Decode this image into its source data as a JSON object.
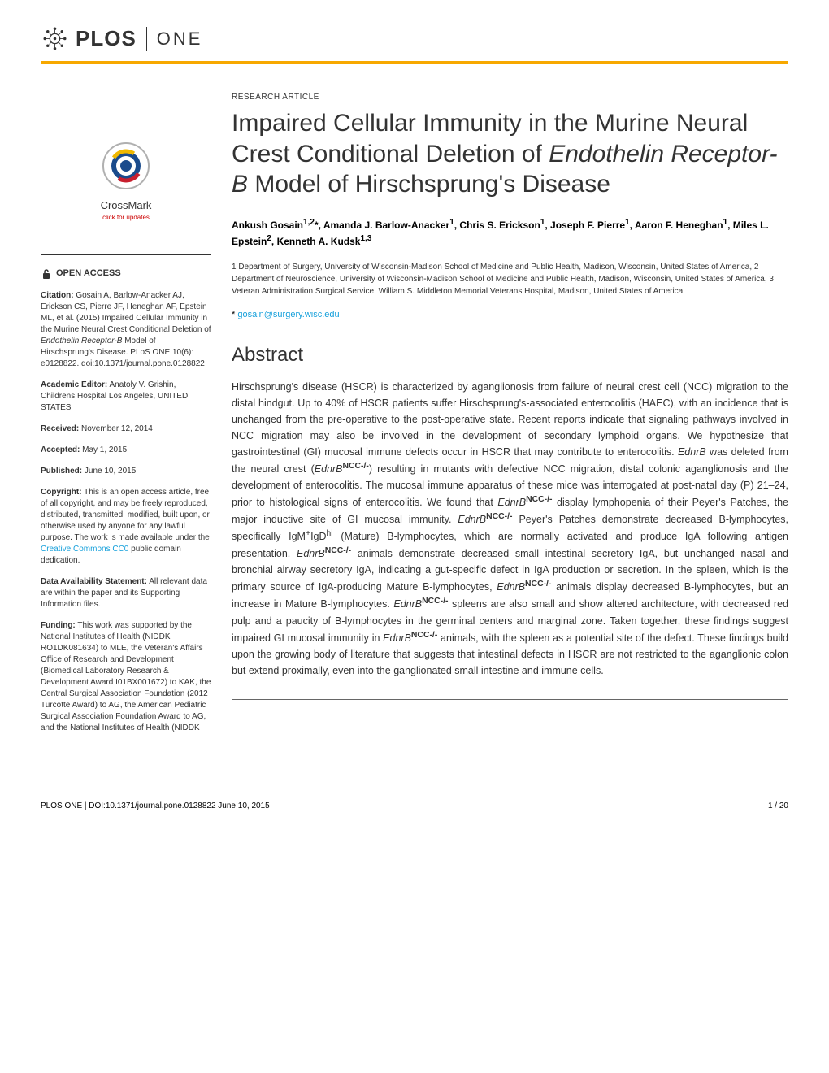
{
  "journal": {
    "logo_plos": "PLOS",
    "logo_one": "ONE"
  },
  "crossmark": {
    "label": "CrossMark",
    "sub": "click for updates"
  },
  "sidebar": {
    "open_access": "OPEN ACCESS",
    "citation_label": "Citation:",
    "citation": " Gosain A, Barlow-Anacker AJ, Erickson CS, Pierre JF, Heneghan AF, Epstein ML, et al. (2015) Impaired Cellular Immunity in the Murine Neural Crest Conditional Deletion of ",
    "citation_italic": "Endothelin Receptor-B",
    "citation_end": " Model of Hirschsprung's Disease. PLoS ONE 10(6): e0128822. doi:10.1371/journal.pone.0128822",
    "editor_label": "Academic Editor:",
    "editor": " Anatoly V. Grishin, Childrens Hospital Los Angeles, UNITED STATES",
    "received_label": "Received:",
    "received": " November 12, 2014",
    "accepted_label": "Accepted:",
    "accepted": " May 1, 2015",
    "published_label": "Published:",
    "published": " June 10, 2015",
    "copyright_label": "Copyright:",
    "copyright": " This is an open access article, free of all copyright, and may be freely reproduced, distributed, transmitted, modified, built upon, or otherwise used by anyone for any lawful purpose. The work is made available under the ",
    "copyright_link": "Creative Commons CC0",
    "copyright_end": " public domain dedication.",
    "data_label": "Data Availability Statement:",
    "data": " All relevant data are within the paper and its Supporting Information files.",
    "funding_label": "Funding:",
    "funding": " This work was supported by the National Institutes of Health (NIDDK RO1DK081634) to MLE, the Veteran's Affairs Office of Research and Development (Biomedical Laboratory Research & Development Award I01BX001672) to KAK, the Central Surgical Association Foundation (2012 Turcotte Award) to AG, the American Pediatric Surgical Association Foundation Award to AG, and the National Institutes of Health (NIDDK"
  },
  "article": {
    "type": "RESEARCH ARTICLE",
    "title_1": "Impaired Cellular Immunity in the Murine Neural Crest Conditional Deletion of ",
    "title_italic": "Endothelin Receptor-B",
    "title_2": " Model of Hirschsprung's Disease",
    "authors_html": "Ankush Gosain<sup>1,2</sup>*, Amanda J. Barlow-Anacker<sup>1</sup>, Chris S. Erickson<sup>1</sup>, Joseph F. Pierre<sup>1</sup>, Aaron F. Heneghan<sup>1</sup>, Miles L. Epstein<sup>2</sup>, Kenneth A. Kudsk<sup>1,3</sup>",
    "affiliations": "1 Department of Surgery, University of Wisconsin-Madison School of Medicine and Public Health, Madison, Wisconsin, United States of America, 2 Department of Neuroscience, University of Wisconsin-Madison School of Medicine and Public Health, Madison, Wisconsin, United States of America, 3 Veteran Administration Surgical Service, William S. Middleton Memorial Veterans Hospital, Madison, United States of America",
    "correspondence_symbol": "* ",
    "correspondence_email": "gosain@surgery.wisc.edu",
    "abstract_heading": "Abstract",
    "abstract": "Hirschsprung's disease (HSCR) is characterized by aganglionosis from failure of neural crest cell (NCC) migration to the distal hindgut. Up to 40% of HSCR patients suffer Hirschsprung's-associated enterocolitis (HAEC), with an incidence that is unchanged from the pre-operative to the post-operative state. Recent reports indicate that signaling pathways involved in NCC migration may also be involved in the development of secondary lymphoid organs. We hypothesize that gastrointestinal (GI) mucosal immune defects occur in HSCR that may contribute to enterocolitis. <i>EdnrB</i> was deleted from the neural crest (<i>EdnrB</i><sup><b>NCC-/-</b></sup>) resulting in mutants with defective NCC migration, distal colonic aganglionosis and the development of enterocolitis. The mucosal immune apparatus of these mice was interrogated at post-natal day (P) 21–24, prior to histological signs of enterocolitis. We found that <i>EdnrB</i><sup><b>NCC-/-</b></sup> display lymphopenia of their Peyer's Patches, the major inductive site of GI mucosal immunity. <i>EdnrB</i><sup><b>NCC-/-</b></sup> Peyer's Patches demonstrate decreased B-lymphocytes, specifically IgM<sup>+</sup>IgD<sup>hi</sup> (Mature) B-lymphocytes, which are normally activated and produce IgA following antigen presentation. <i>EdnrB</i><sup><b>NCC-/-</b></sup> animals demonstrate decreased small intestinal secretory IgA, but unchanged nasal and bronchial airway secretory IgA, indicating a gut-specific defect in IgA production or secretion. In the spleen, which is the primary source of IgA-producing Mature B-lymphocytes, <i>EdnrB</i><sup><b>NCC-/-</b></sup> animals display decreased B-lymphocytes, but an increase in Mature B-lymphocytes. <i>EdnrB</i><sup><b>NCC-/-</b></sup> spleens are also small and show altered architecture, with decreased red pulp and a paucity of B-lymphocytes in the germinal centers and marginal zone. Taken together, these findings suggest impaired GI mucosal immunity in <i>EdnrB</i><sup><b>NCC-/-</b></sup> animals, with the spleen as a potential site of the defect. These findings build upon the growing body of literature that suggests that intestinal defects in HSCR are not restricted to the aganglionic colon but extend proximally, even into the ganglionated small intestine and immune cells."
  },
  "footer": {
    "left": "PLOS ONE | DOI:10.1371/journal.pone.0128822    June 10, 2015",
    "right": "1 / 20"
  },
  "colors": {
    "accent": "#f7a800",
    "link": "#16a0db",
    "text": "#333333"
  }
}
